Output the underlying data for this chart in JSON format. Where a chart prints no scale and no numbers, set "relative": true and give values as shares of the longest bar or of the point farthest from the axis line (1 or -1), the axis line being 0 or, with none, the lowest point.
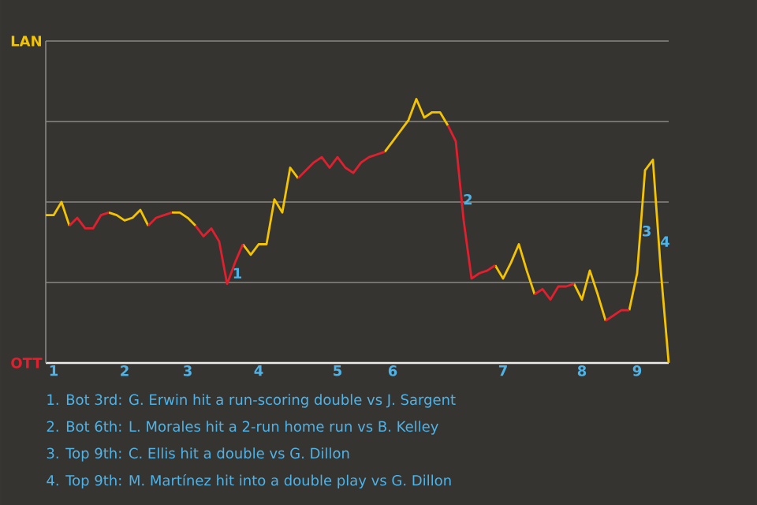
{
  "chart_data": {
    "type": "line",
    "relative": true,
    "categories": [
      null,
      "1",
      null,
      null,
      null,
      null,
      null,
      null,
      null,
      null,
      "2",
      null,
      null,
      null,
      null,
      null,
      null,
      null,
      "3",
      null,
      null,
      null,
      null,
      null,
      null,
      null,
      null,
      "4",
      null,
      null,
      null,
      null,
      null,
      null,
      null,
      null,
      null,
      "5",
      null,
      null,
      null,
      null,
      null,
      null,
      "6",
      null,
      null,
      null,
      null,
      null,
      null,
      null,
      null,
      null,
      null,
      null,
      null,
      null,
      "7",
      null,
      null,
      null,
      null,
      null,
      null,
      null,
      null,
      null,
      "8",
      null,
      null,
      null,
      null,
      null,
      null,
      "9",
      null,
      null,
      null,
      null
    ],
    "series": [
      {
        "name": "LAN",
        "color": "#f5c400",
        "values": [
          0.56,
          0.56,
          0.61,
          0.52,
          null,
          null,
          null,
          null,
          0.57,
          0.56,
          0.54,
          0.55,
          0.58,
          0.52,
          null,
          null,
          0.57,
          0.57,
          0.55,
          0.52,
          null,
          null,
          null,
          null,
          null,
          0.45,
          0.41,
          0.45,
          0.45,
          0.62,
          0.57,
          0.74,
          0.7,
          null,
          null,
          null,
          null,
          null,
          null,
          null,
          null,
          null,
          null,
          0.8,
          0.84,
          0.88,
          0.92,
          1,
          0.93,
          0.95,
          0.95,
          0.9,
          null,
          null,
          null,
          null,
          null,
          0.37,
          0.32,
          0.38,
          0.45,
          0.35,
          0.26,
          null,
          null,
          null,
          null,
          0.3,
          0.24,
          0.35,
          0.26,
          0.16,
          null,
          null,
          0.2,
          0.34,
          0.73,
          0.77,
          0.35,
          0
        ]
      },
      {
        "name": "OTT",
        "color": "#e0202e",
        "values": [
          null,
          null,
          null,
          0.52,
          0.55,
          0.51,
          0.51,
          0.56,
          0.57,
          null,
          null,
          null,
          null,
          0.52,
          0.55,
          0.56,
          0.57,
          null,
          null,
          0.52,
          0.48,
          0.51,
          0.46,
          0.3,
          0.38,
          0.45,
          null,
          null,
          null,
          null,
          null,
          null,
          0.7,
          0.73,
          0.76,
          0.78,
          0.74,
          0.78,
          0.74,
          0.72,
          0.76,
          0.78,
          0.79,
          0.8,
          null,
          null,
          null,
          null,
          null,
          null,
          null,
          0.9,
          0.84,
          0.54,
          0.32,
          0.34,
          0.35,
          0.37,
          null,
          null,
          null,
          null,
          0.26,
          0.28,
          0.24,
          0.29,
          0.29,
          0.3,
          null,
          null,
          null,
          0.16,
          0.18,
          0.2,
          0.2,
          null,
          null,
          null,
          null,
          null
        ]
      }
    ],
    "grid": "y",
    "annotations": [
      {
        "text": "1",
        "y": 0.34
      },
      {
        "text": "2",
        "y": 0.62
      },
      {
        "text": "3",
        "y": 0.5
      },
      {
        "text": "4",
        "y": 0.46
      },
      "1. Bot 3rd: G. Erwin hit a run-scoring double vs J. Sargent",
      "2. Bot 6th: L. Morales hit a 2-run home run vs B. Kelley",
      "3. Top 9th: C. Ellis hit a double vs G. Dillon",
      "4. Top 9th: M. Martínez hit into a double play vs G. Dillon"
    ]
  }
}
